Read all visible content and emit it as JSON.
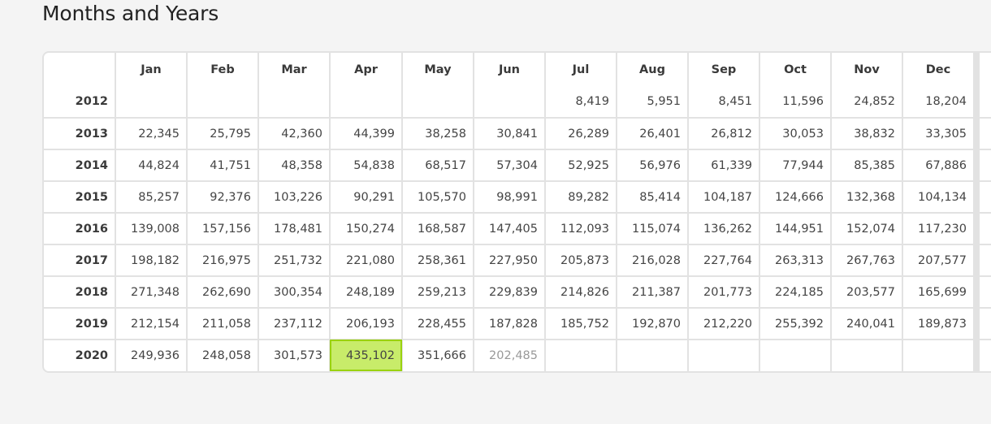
{
  "page": {
    "title": "Months and Years"
  },
  "table": {
    "columns": [
      "Jan",
      "Feb",
      "Mar",
      "Apr",
      "May",
      "Jun",
      "Jul",
      "Aug",
      "Sep",
      "Oct",
      "Nov",
      "Dec"
    ],
    "rows": [
      {
        "year": "2012",
        "values": [
          "",
          "",
          "",
          "",
          "",
          "",
          "8,419",
          "5,951",
          "8,451",
          "11,596",
          "24,852",
          "18,204"
        ]
      },
      {
        "year": "2013",
        "values": [
          "22,345",
          "25,795",
          "42,360",
          "44,399",
          "38,258",
          "30,841",
          "26,289",
          "26,401",
          "26,812",
          "30,053",
          "38,832",
          "33,305"
        ]
      },
      {
        "year": "2014",
        "values": [
          "44,824",
          "41,751",
          "48,358",
          "54,838",
          "68,517",
          "57,304",
          "52,925",
          "56,976",
          "61,339",
          "77,944",
          "85,385",
          "67,886"
        ]
      },
      {
        "year": "2015",
        "values": [
          "85,257",
          "92,376",
          "103,226",
          "90,291",
          "105,570",
          "98,991",
          "89,282",
          "85,414",
          "104,187",
          "124,666",
          "132,368",
          "104,134"
        ]
      },
      {
        "year": "2016",
        "values": [
          "139,008",
          "157,156",
          "178,481",
          "150,274",
          "168,587",
          "147,405",
          "112,093",
          "115,074",
          "136,262",
          "144,951",
          "152,074",
          "117,230"
        ]
      },
      {
        "year": "2017",
        "values": [
          "198,182",
          "216,975",
          "251,732",
          "221,080",
          "258,361",
          "227,950",
          "205,873",
          "216,028",
          "227,764",
          "263,313",
          "267,763",
          "207,577"
        ]
      },
      {
        "year": "2018",
        "values": [
          "271,348",
          "262,690",
          "300,354",
          "248,189",
          "259,213",
          "229,839",
          "214,826",
          "211,387",
          "201,773",
          "224,185",
          "203,577",
          "165,699"
        ]
      },
      {
        "year": "2019",
        "values": [
          "212,154",
          "211,058",
          "237,112",
          "206,193",
          "228,455",
          "187,828",
          "185,752",
          "192,870",
          "212,220",
          "255,392",
          "240,041",
          "189,873"
        ]
      },
      {
        "year": "2020",
        "values": [
          "249,936",
          "248,058",
          "301,573",
          "435,102",
          "351,666",
          "202,485",
          "",
          "",
          "",
          "",
          "",
          ""
        ]
      }
    ],
    "highlight": {
      "row": 8,
      "col": 3,
      "color": "#c8ec6a",
      "border_color": "#9ad20f"
    },
    "partial_cell": {
      "row": 8,
      "col": 5,
      "color": "#999999"
    }
  }
}
